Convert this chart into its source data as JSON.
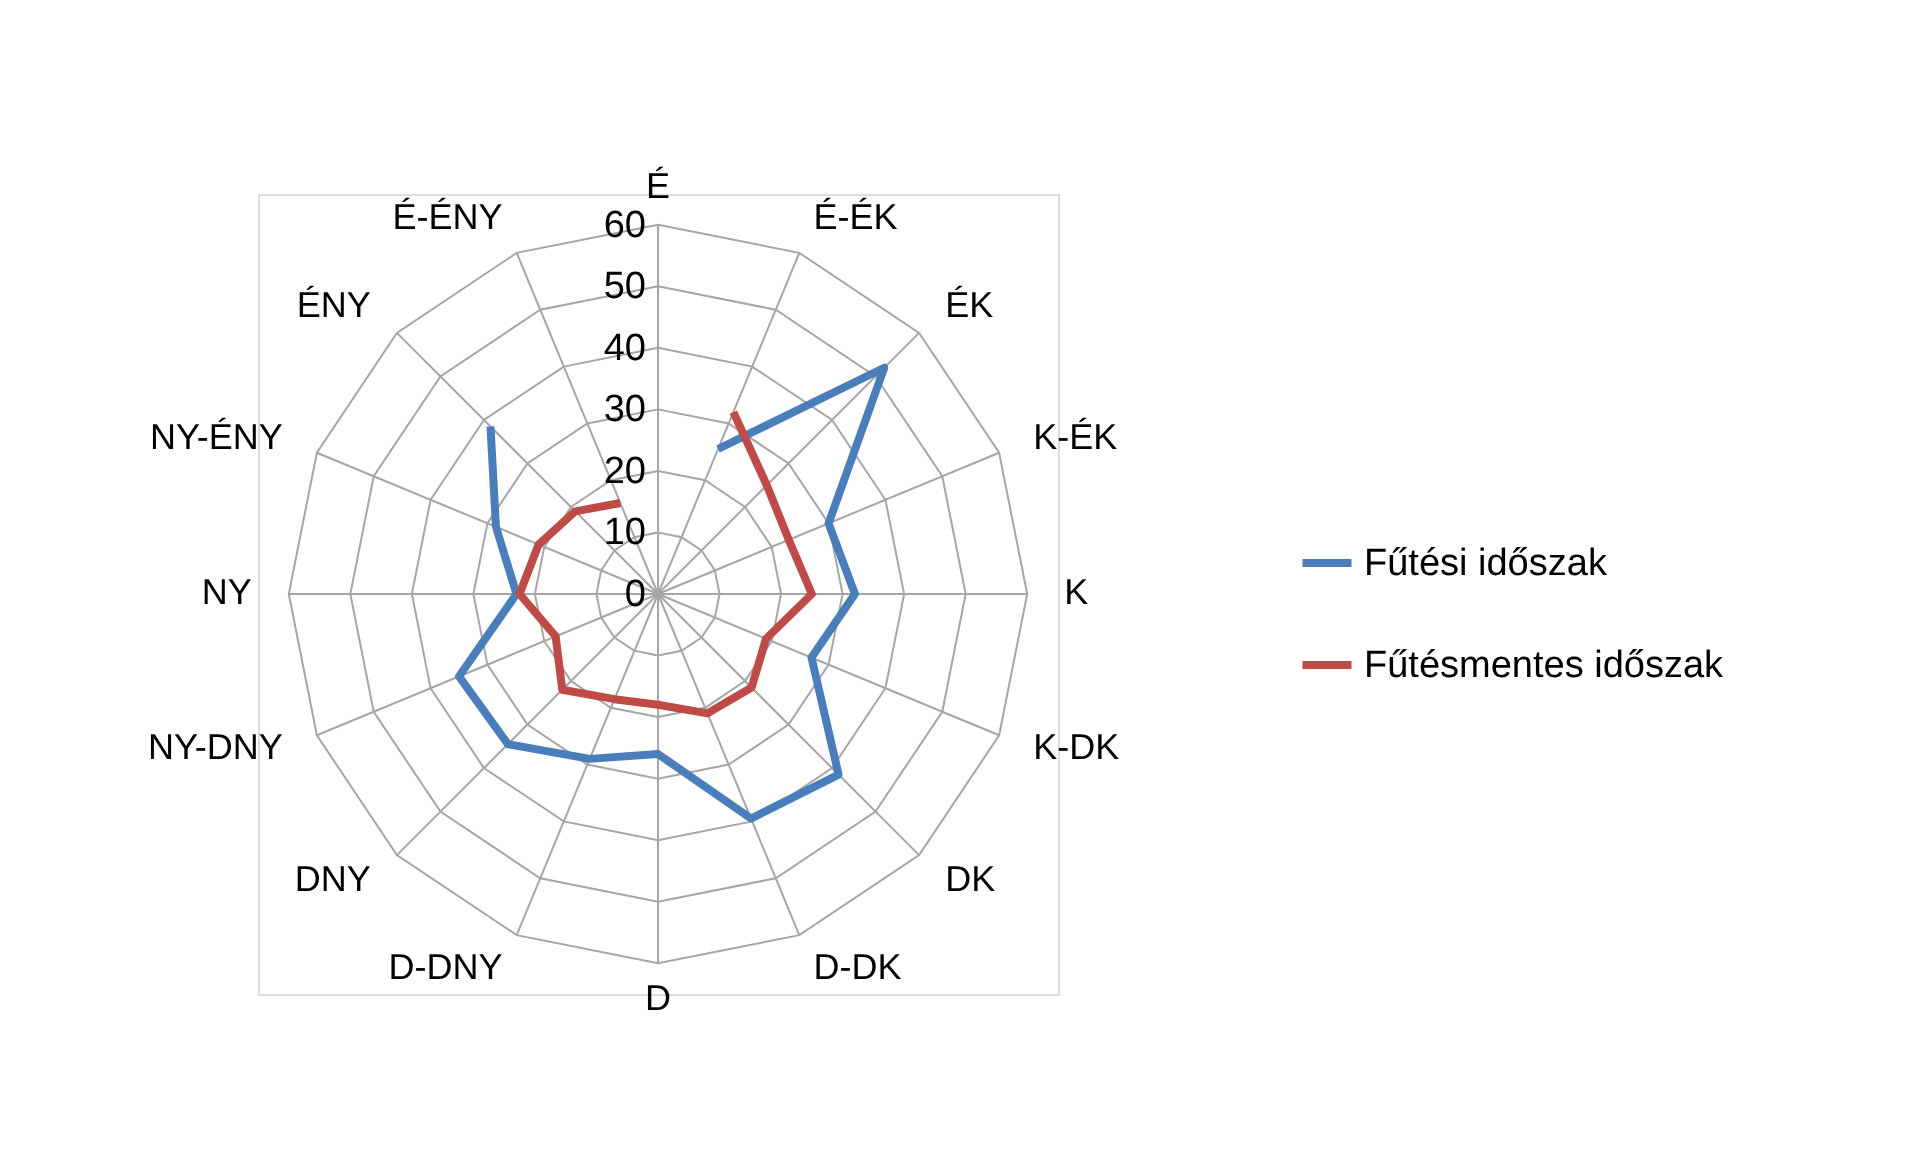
{
  "chart_data": {
    "type": "radar",
    "categories": [
      "É",
      "É-ÉK",
      "ÉK",
      "K-ÉK",
      "K",
      "K-DK",
      "DK",
      "D-DK",
      "D",
      "D-DNY",
      "DNY",
      "NY-DNY",
      "NY",
      "NY-ÉNY",
      "ÉNY",
      "É-ÉNY"
    ],
    "series": [
      {
        "name": "Fűtési időszak",
        "color": "#4a7ebb",
        "values": [
          null,
          25.5,
          52,
          30,
          32,
          27,
          41.5,
          39.5,
          26,
          29,
          34.5,
          35,
          23,
          28.5,
          38.5,
          null
        ]
      },
      {
        "name": "Fűtésmentes időszak",
        "color": "#be4b48",
        "values": [
          null,
          32,
          25,
          23,
          25,
          19,
          21.5,
          21,
          18,
          18.5,
          22,
          18,
          22.5,
          21,
          19,
          16
        ]
      }
    ],
    "ylim": [
      0,
      60
    ],
    "yticks": [
      0,
      10,
      20,
      30,
      40,
      50,
      60
    ],
    "grid": true,
    "legend": "right",
    "line_style": "solid",
    "marker": "none"
  }
}
